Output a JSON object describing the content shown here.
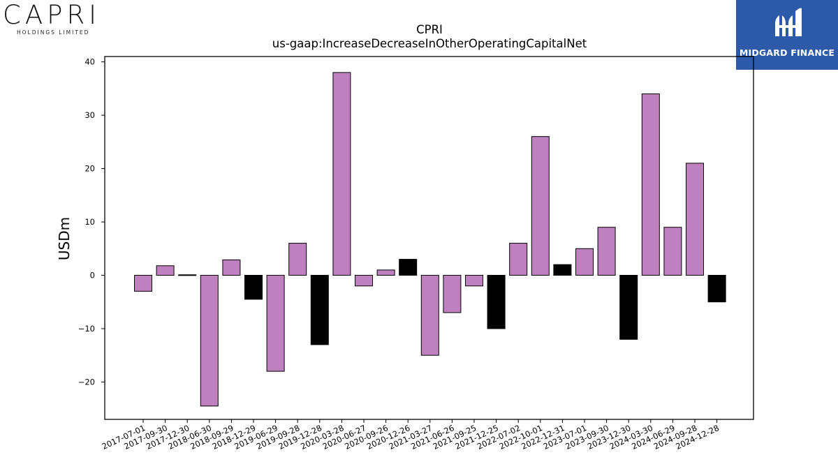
{
  "logos": {
    "left_brand": "CAPRI",
    "left_sub": "HOLDINGS LIMITED",
    "right_brand": "MIDGARD FINANCE"
  },
  "colors": {
    "positive_fill": "#bf80bf",
    "highlight_fill": "#000000",
    "bar_stroke": "#000000",
    "right_logo_bg": "#2c5aa8"
  },
  "chart_data": {
    "type": "bar",
    "title": "CPRI",
    "subtitle": "us-gaap:IncreaseDecreaseInOtherOperatingCapitalNet",
    "xlabel": "",
    "ylabel": "USDm",
    "ylim": [
      -27,
      41
    ],
    "yticks": [
      -20,
      -10,
      0,
      10,
      20,
      30,
      40
    ],
    "grid": false,
    "categories": [
      "2017-07-01",
      "2017-09-30",
      "2017-12-30",
      "2018-06-30",
      "2018-09-29",
      "2018-12-29",
      "2019-06-29",
      "2019-09-28",
      "2019-12-28",
      "2020-03-28",
      "2020-06-27",
      "2020-09-26",
      "2020-12-26",
      "2021-03-27",
      "2021-06-26",
      "2021-09-25",
      "2021-12-25",
      "2022-07-02",
      "2022-10-01",
      "2022-12-31",
      "2023-07-01",
      "2023-09-30",
      "2023-12-30",
      "2024-03-30",
      "2024-06-29",
      "2024-09-28",
      "2024-12-28"
    ],
    "values": [
      -3,
      1.8,
      0.1,
      -24.5,
      2.9,
      -4.5,
      -18,
      6,
      -13,
      38,
      -2,
      1,
      3,
      -15,
      -7,
      -2,
      -10,
      6,
      26,
      2,
      5,
      9,
      -12,
      34,
      9,
      21,
      -5
    ],
    "highlight": [
      false,
      false,
      true,
      false,
      false,
      true,
      false,
      false,
      true,
      false,
      false,
      false,
      true,
      false,
      false,
      false,
      true,
      false,
      false,
      true,
      false,
      false,
      true,
      false,
      false,
      false,
      true
    ]
  }
}
